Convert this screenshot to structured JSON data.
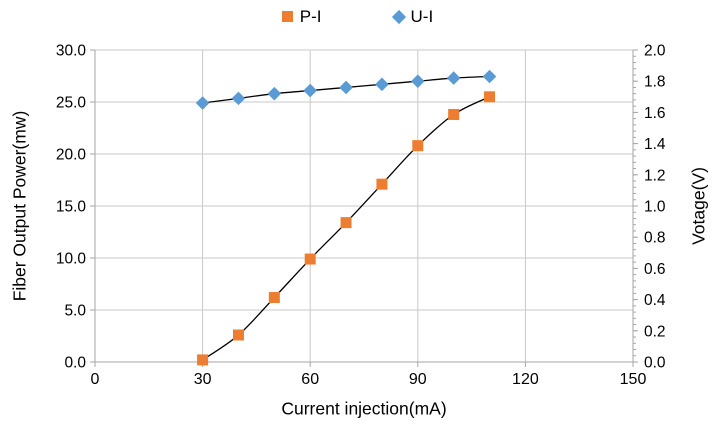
{
  "chart_data": {
    "type": "line",
    "title": "",
    "x": [
      30,
      40,
      50,
      60,
      70,
      80,
      90,
      100,
      110
    ],
    "series": [
      {
        "name": "P-I",
        "axis": "left",
        "marker": "square",
        "marker_color": "#ED7D31",
        "line_color": "#000000",
        "values": [
          0.2,
          2.6,
          6.2,
          9.9,
          13.4,
          17.1,
          20.8,
          23.8,
          25.5
        ]
      },
      {
        "name": "U-I",
        "axis": "right",
        "marker": "diamond",
        "marker_color": "#5B9BD5",
        "line_color": "#000000",
        "values": [
          1.66,
          1.69,
          1.72,
          1.74,
          1.76,
          1.78,
          1.8,
          1.82,
          1.83
        ]
      }
    ],
    "x_axis": {
      "label": "Current injection(mA)",
      "min": 0,
      "max": 150,
      "ticks": [
        "0",
        "30",
        "60",
        "90",
        "120",
        "150"
      ]
    },
    "y_axis_left": {
      "label": "Fiber Output Power(mw)",
      "min": 0,
      "max": 30,
      "ticks": [
        "0.0",
        "5.0",
        "10.0",
        "15.0",
        "20.0",
        "25.0",
        "30.0"
      ]
    },
    "y_axis_right": {
      "label": "Votage(V)",
      "min": 0,
      "max": 2,
      "ticks": [
        "0.0",
        "0.2",
        "0.4",
        "0.6",
        "0.8",
        "1.0",
        "1.2",
        "1.4",
        "1.6",
        "1.8",
        "2.0"
      ],
      "minor_tick_step": 0.04
    },
    "grid": true,
    "legend_position": "top"
  },
  "legend": {
    "items": [
      {
        "label": "P-I",
        "marker": "square",
        "color": "#ED7D31"
      },
      {
        "label": "U-I",
        "marker": "diamond",
        "color": "#5B9BD5"
      }
    ]
  },
  "style": {
    "grid_color": "#C9C9C9",
    "axis_color": "#A6A6A6",
    "trend_line_color": "#000000",
    "text_color": "#000000"
  }
}
